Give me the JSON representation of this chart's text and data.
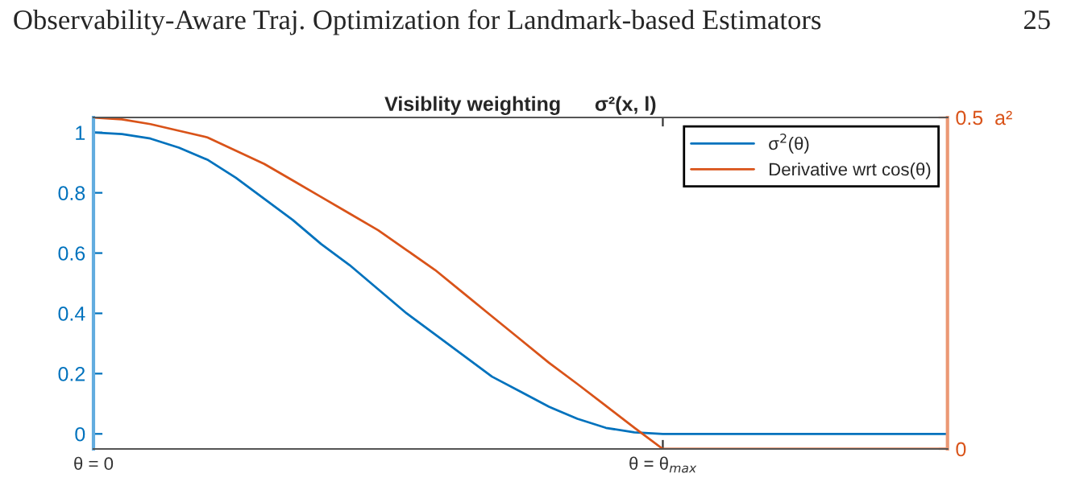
{
  "chart_data": {
    "type": "line",
    "title": "Visiblity weighting      σ²(x, l)",
    "annotations": [
      "Observability-Aware Traj. Optimization for Landmark-based Estimators",
      "25"
    ],
    "categories": [
      "θ = 0",
      null,
      null,
      null,
      null,
      null,
      null,
      null,
      null,
      null,
      null,
      null,
      null,
      null,
      null,
      null,
      null,
      null,
      null,
      null,
      "θ = θ$_{max}$",
      null,
      null,
      null,
      null,
      null,
      null,
      null,
      null,
      null,
      null
    ],
    "series": [
      {
        "name": "σ$^{2}$(θ)",
        "color": "#0072bd",
        "values": [
          1.0,
          0.995,
          0.98,
          0.95,
          0.91,
          0.85,
          0.78,
          0.71,
          0.63,
          0.56,
          0.48,
          0.4,
          0.33,
          0.26,
          0.19,
          0.14,
          0.09,
          0.05,
          0.02,
          0.005,
          0,
          0,
          0,
          0,
          0,
          0,
          0,
          0,
          0,
          0,
          0
        ]
      },
      {
        "name": "Derivative wrt cos(θ)",
        "color": "#d95319",
        "axis": "y2",
        "values": [
          0.5,
          0.497,
          0.49,
          0.48,
          0.47,
          0.45,
          0.43,
          0.405,
          0.38,
          0.355,
          0.33,
          0.3,
          0.27,
          0.235,
          0.2,
          0.165,
          0.13,
          0.098,
          0.065,
          0.032,
          0,
          0,
          0,
          0,
          0,
          0,
          0,
          0,
          0,
          0,
          0
        ]
      }
    ],
    "ylim": [
      -0.05,
      1.05
    ],
    "yticks": [
      0,
      0.2,
      0.4,
      0.6,
      0.8,
      1
    ],
    "y2lim": [
      0,
      0.5
    ],
    "y2ticks": [
      0,
      {
        "value": 0.5,
        "label": "0.5  a²"
      }
    ],
    "legend": "top right",
    "grid": false,
    "marker": "none",
    "line_style": "solid"
  }
}
